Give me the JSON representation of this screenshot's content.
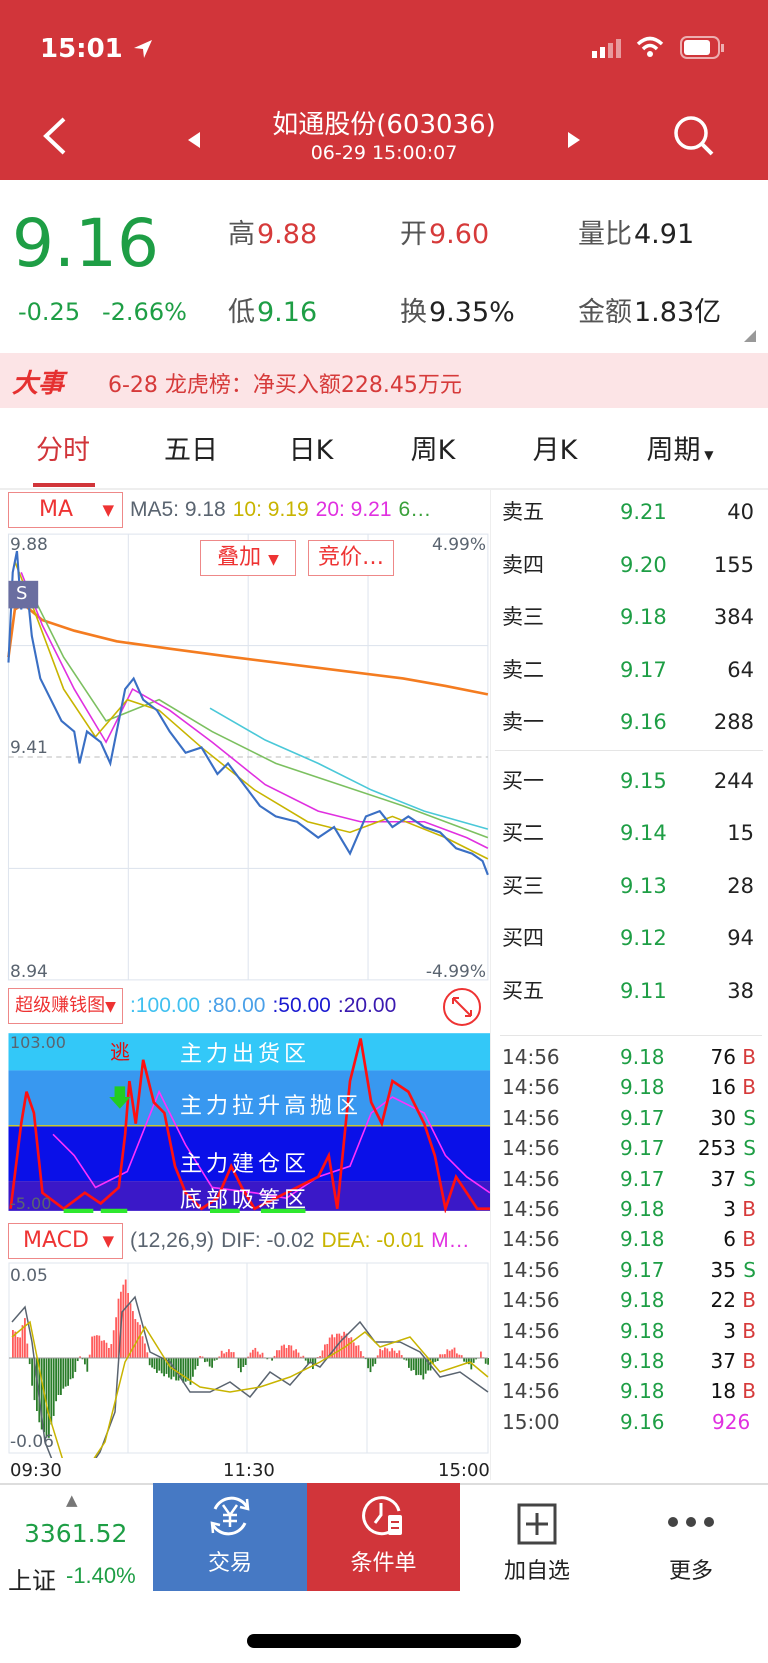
{
  "status_bar": {
    "time": "15:01"
  },
  "nav": {
    "title": "如通股份(603036)",
    "subtitle": "06-29 15:00:07"
  },
  "quote": {
    "price": "9.16",
    "change": "-0.25",
    "change_pct": "-2.66%",
    "stats": [
      {
        "k": "高",
        "v": "9.88",
        "color": "red"
      },
      {
        "k": "开",
        "v": "9.60",
        "color": "red"
      },
      {
        "k": "量比",
        "v": "4.91",
        "color": "dark"
      },
      {
        "k": "低",
        "v": "9.16",
        "color": "green"
      },
      {
        "k": "换",
        "v": "9.35%",
        "color": "dark"
      },
      {
        "k": "金额",
        "v": "1.83亿",
        "color": "dark"
      }
    ]
  },
  "news": {
    "badge": "大事",
    "text": "6-28 龙虎榜：净买入额228.45万元"
  },
  "tabs": [
    "分时",
    "五日",
    "日K",
    "周K",
    "月K",
    "周期"
  ],
  "active_tab": "分时",
  "price_chart": {
    "indicator": "MA",
    "ma5": "MA5: 9.18",
    "ma10": "10: 9.19",
    "ma20": "20: 9.21",
    "ma60": "6…",
    "overlay": "叠加",
    "auction": "竞价…",
    "high": "9.88",
    "mid": "9.41",
    "low": "8.94",
    "pct_high": "4.99%",
    "pct_low": "-4.99%",
    "marker": "S"
  },
  "money_chart": {
    "indicator": "超级赚钱图",
    "v1": ":100.00",
    "v2": ":80.00",
    "v3": ":50.00",
    "v4": ":20.00",
    "top": "103.00",
    "bottom": "-5.00",
    "escape": "逃",
    "zones": [
      "主力出货区",
      "主力拉升高抛区",
      "主力建仓区",
      "底部吸筹区"
    ]
  },
  "macd": {
    "indicator": "MACD",
    "params": "(12,26,9)",
    "dif": "DIF: -0.02",
    "dea": "DEA: -0.01",
    "m": "M…",
    "top": "0.05",
    "bottom": "-0.06"
  },
  "time_axis": [
    "09:30",
    "11:30",
    "15:00"
  ],
  "order_book": [
    {
      "label": "卖五",
      "price": "9.21",
      "vol": "40"
    },
    {
      "label": "卖四",
      "price": "9.20",
      "vol": "155"
    },
    {
      "label": "卖三",
      "price": "9.18",
      "vol": "384"
    },
    {
      "label": "卖二",
      "price": "9.17",
      "vol": "64"
    },
    {
      "label": "卖一",
      "price": "9.16",
      "vol": "288"
    },
    {
      "label": "买一",
      "price": "9.15",
      "vol": "244"
    },
    {
      "label": "买二",
      "price": "9.14",
      "vol": "15"
    },
    {
      "label": "买三",
      "price": "9.13",
      "vol": "28"
    },
    {
      "label": "买四",
      "price": "9.12",
      "vol": "94"
    },
    {
      "label": "买五",
      "price": "9.11",
      "vol": "38"
    }
  ],
  "trades": [
    {
      "t": "14:56",
      "p": "9.18",
      "v": "76",
      "s": "B"
    },
    {
      "t": "14:56",
      "p": "9.18",
      "v": "16",
      "s": "B"
    },
    {
      "t": "14:56",
      "p": "9.17",
      "v": "30",
      "s": "S"
    },
    {
      "t": "14:56",
      "p": "9.17",
      "v": "253",
      "s": "S"
    },
    {
      "t": "14:56",
      "p": "9.17",
      "v": "37",
      "s": "S"
    },
    {
      "t": "14:56",
      "p": "9.18",
      "v": "3",
      "s": "B"
    },
    {
      "t": "14:56",
      "p": "9.18",
      "v": "6",
      "s": "B"
    },
    {
      "t": "14:56",
      "p": "9.17",
      "v": "35",
      "s": "S"
    },
    {
      "t": "14:56",
      "p": "9.18",
      "v": "22",
      "s": "B"
    },
    {
      "t": "14:56",
      "p": "9.18",
      "v": "3",
      "s": "B"
    },
    {
      "t": "14:56",
      "p": "9.18",
      "v": "37",
      "s": "B"
    },
    {
      "t": "14:56",
      "p": "9.18",
      "v": "18",
      "s": "B"
    },
    {
      "t": "15:00",
      "p": "9.16",
      "v": "926",
      "s": ""
    }
  ],
  "bottom_bar": {
    "index_value": "3361.52",
    "index_name": "上证",
    "index_change": "-1.40%",
    "trade": "交易",
    "condition": "条件单",
    "add": "加自选",
    "more": "更多"
  },
  "colors": {
    "header": "#d1353a",
    "up": "#d63a3a",
    "down": "#1e9e45",
    "trade_btn": "#4679c4",
    "condition_btn": "#d1353a"
  }
}
